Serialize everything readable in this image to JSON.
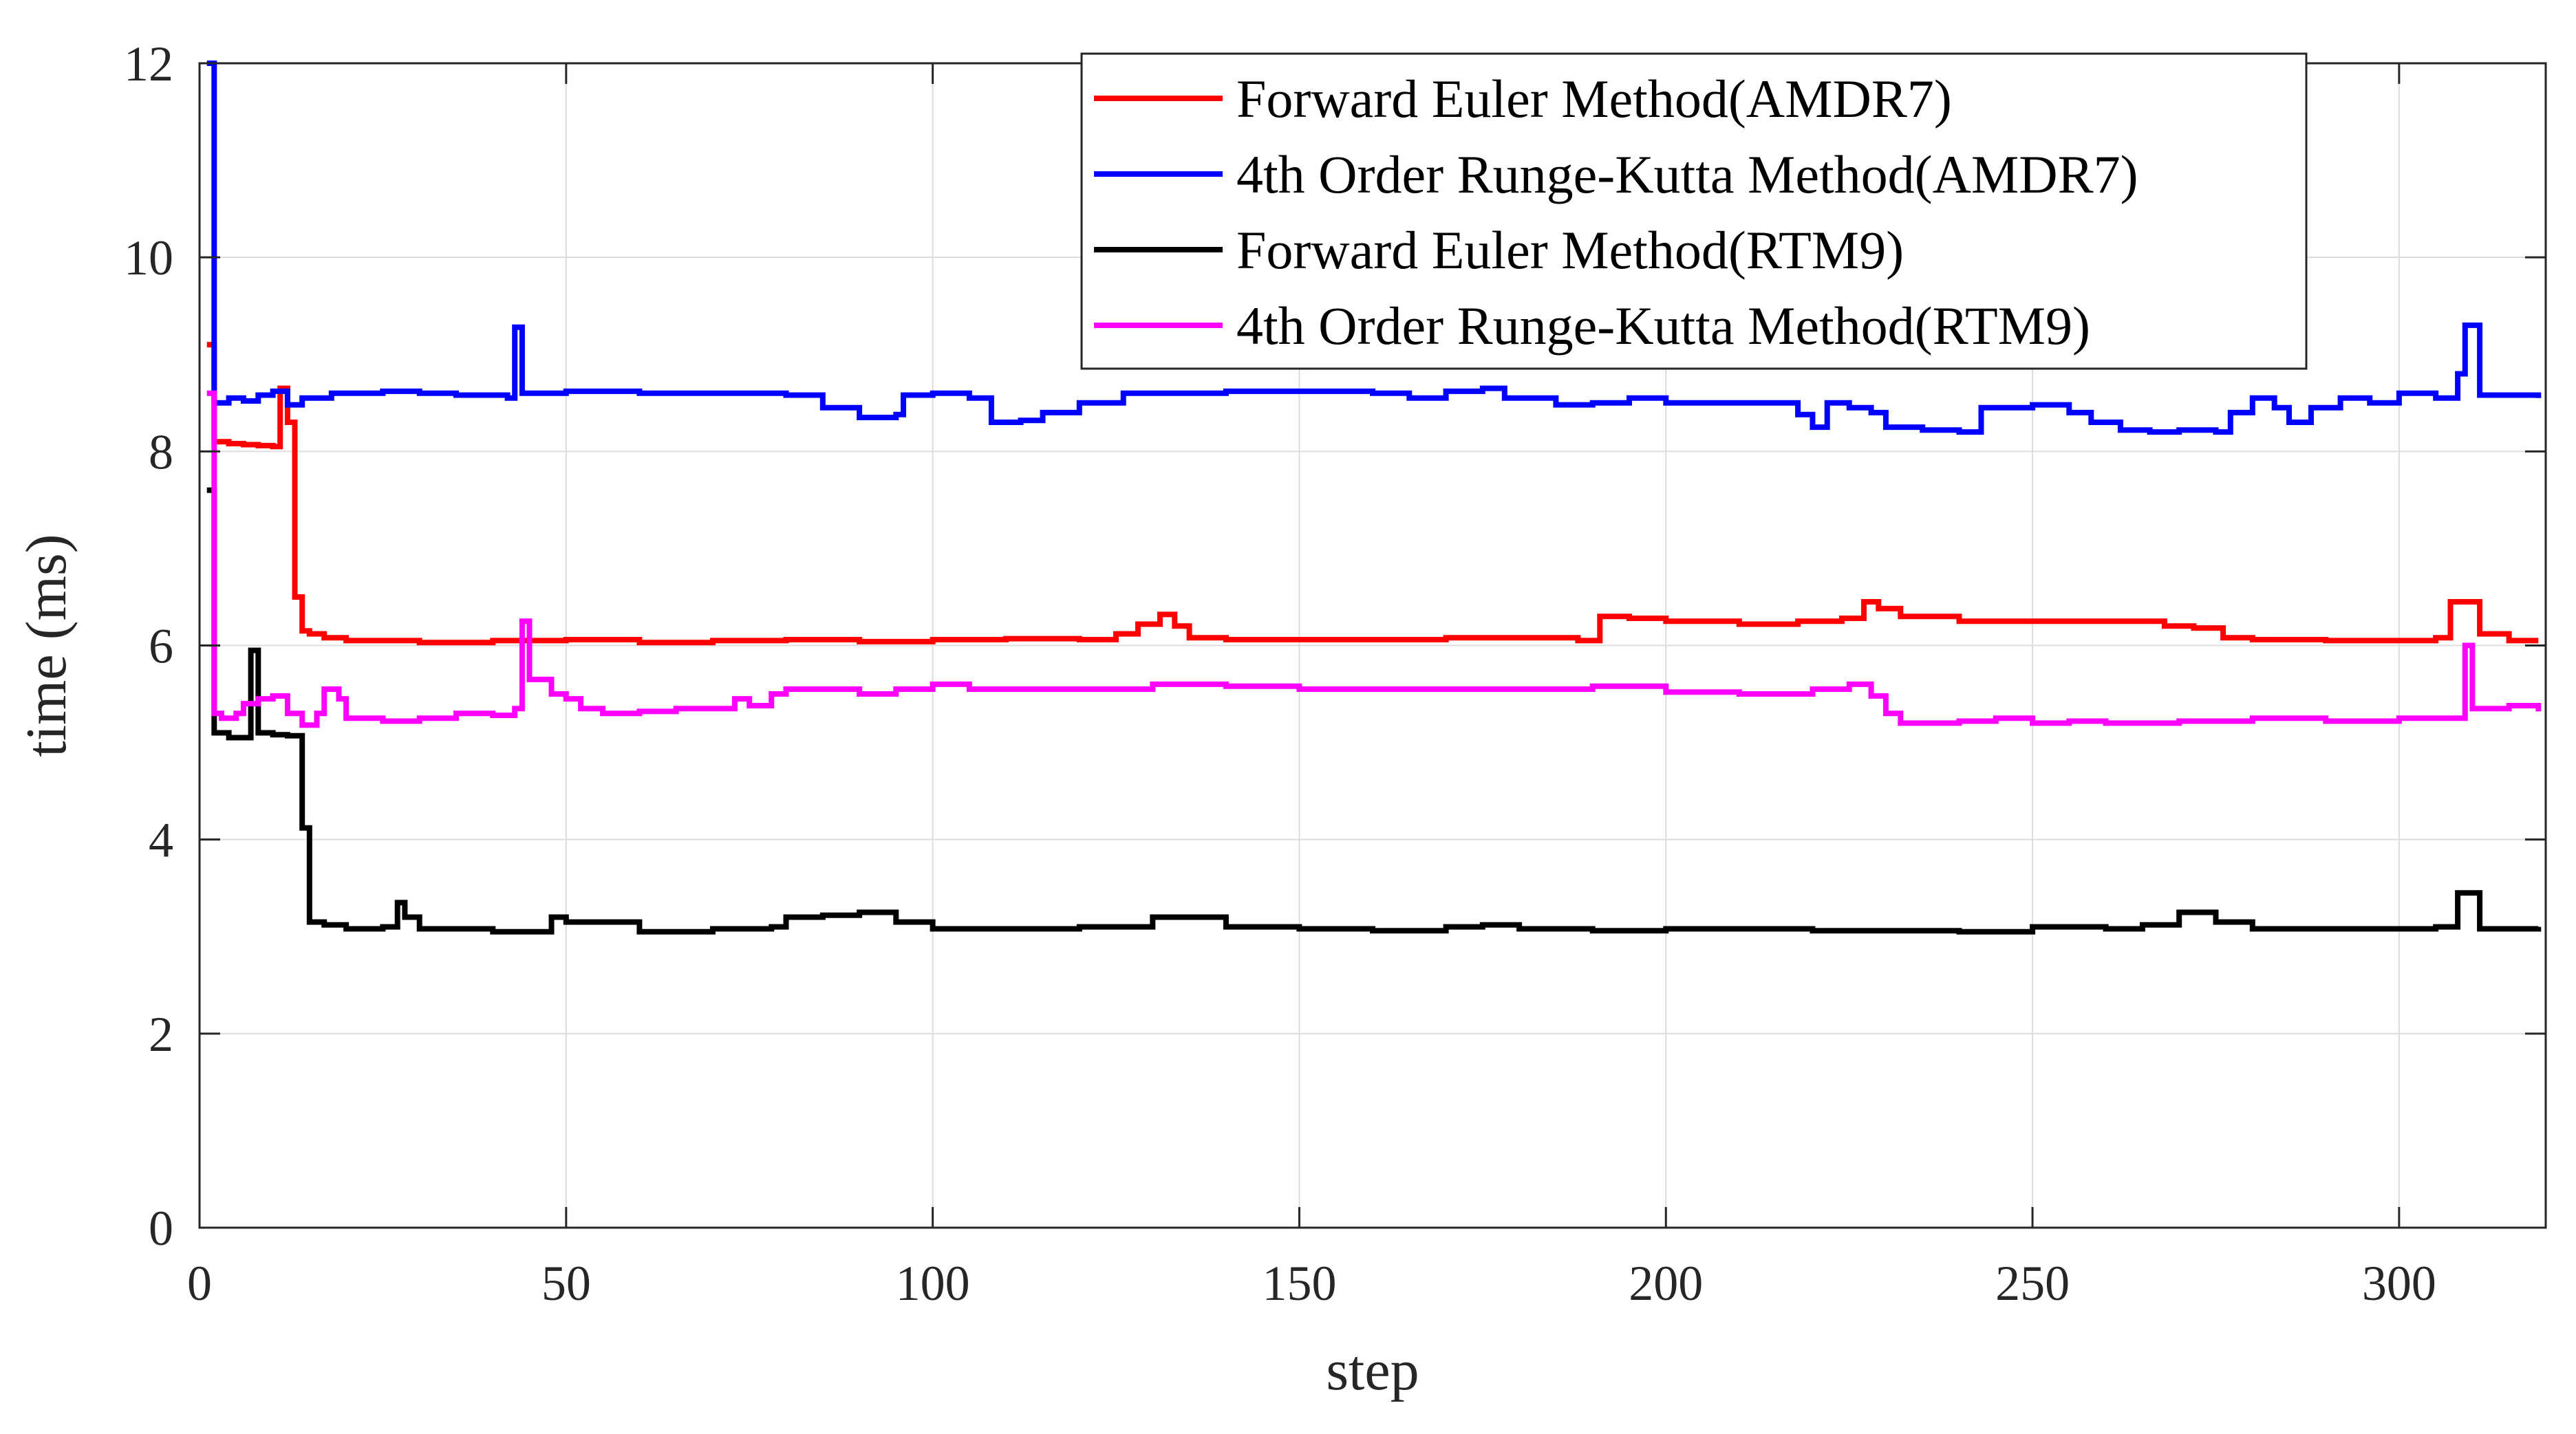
{
  "chart_data": {
    "type": "line",
    "title": "",
    "xlabel": "step",
    "ylabel": "time (ms)",
    "xlim": [
      0,
      320
    ],
    "ylim": [
      0,
      12
    ],
    "xticks": [
      0,
      50,
      100,
      150,
      200,
      250,
      300
    ],
    "yticks": [
      0,
      2,
      4,
      6,
      8,
      10,
      12
    ],
    "grid": true,
    "legend_position": "top-right",
    "step_style": "stairs",
    "series": [
      {
        "name": "Forward Euler Method(AMDR7)",
        "color": "#ff0000",
        "points": [
          [
            1,
            9.1
          ],
          [
            2,
            8.1
          ],
          [
            4,
            8.08
          ],
          [
            6,
            8.07
          ],
          [
            8,
            8.06
          ],
          [
            10,
            8.05
          ],
          [
            11,
            8.65
          ],
          [
            12,
            8.3
          ],
          [
            13,
            6.5
          ],
          [
            14,
            6.15
          ],
          [
            15,
            6.12
          ],
          [
            17,
            6.08
          ],
          [
            20,
            6.05
          ],
          [
            30,
            6.03
          ],
          [
            40,
            6.05
          ],
          [
            50,
            6.06
          ],
          [
            60,
            6.03
          ],
          [
            70,
            6.05
          ],
          [
            80,
            6.06
          ],
          [
            90,
            6.04
          ],
          [
            100,
            6.06
          ],
          [
            110,
            6.07
          ],
          [
            120,
            6.06
          ],
          [
            125,
            6.12
          ],
          [
            128,
            6.22
          ],
          [
            131,
            6.32
          ],
          [
            133,
            6.2
          ],
          [
            135,
            6.08
          ],
          [
            140,
            6.06
          ],
          [
            150,
            6.06
          ],
          [
            160,
            6.06
          ],
          [
            170,
            6.08
          ],
          [
            180,
            6.08
          ],
          [
            188,
            6.05
          ],
          [
            191,
            6.3
          ],
          [
            195,
            6.28
          ],
          [
            200,
            6.25
          ],
          [
            205,
            6.25
          ],
          [
            210,
            6.22
          ],
          [
            218,
            6.25
          ],
          [
            224,
            6.28
          ],
          [
            227,
            6.45
          ],
          [
            229,
            6.38
          ],
          [
            232,
            6.3
          ],
          [
            240,
            6.25
          ],
          [
            250,
            6.25
          ],
          [
            260,
            6.25
          ],
          [
            268,
            6.2
          ],
          [
            272,
            6.18
          ],
          [
            276,
            6.08
          ],
          [
            280,
            6.06
          ],
          [
            290,
            6.05
          ],
          [
            300,
            6.05
          ],
          [
            305,
            6.08
          ],
          [
            307,
            6.45
          ],
          [
            311,
            6.12
          ],
          [
            315,
            6.05
          ],
          [
            319,
            6.05
          ]
        ]
      },
      {
        "name": "4th Order Runge-Kutta Method(AMDR7)",
        "color": "#0000ff",
        "points": [
          [
            1,
            12.0
          ],
          [
            2,
            8.5
          ],
          [
            4,
            8.55
          ],
          [
            6,
            8.52
          ],
          [
            8,
            8.58
          ],
          [
            10,
            8.62
          ],
          [
            12,
            8.48
          ],
          [
            14,
            8.55
          ],
          [
            18,
            8.6
          ],
          [
            25,
            8.62
          ],
          [
            30,
            8.6
          ],
          [
            35,
            8.58
          ],
          [
            42,
            8.55
          ],
          [
            43,
            9.28
          ],
          [
            44,
            8.6
          ],
          [
            50,
            8.62
          ],
          [
            60,
            8.6
          ],
          [
            70,
            8.6
          ],
          [
            80,
            8.58
          ],
          [
            85,
            8.45
          ],
          [
            90,
            8.35
          ],
          [
            95,
            8.38
          ],
          [
            96,
            8.58
          ],
          [
            100,
            8.6
          ],
          [
            105,
            8.55
          ],
          [
            108,
            8.3
          ],
          [
            112,
            8.32
          ],
          [
            115,
            8.4
          ],
          [
            120,
            8.5
          ],
          [
            126,
            8.6
          ],
          [
            130,
            8.6
          ],
          [
            140,
            8.62
          ],
          [
            150,
            8.62
          ],
          [
            160,
            8.6
          ],
          [
            165,
            8.55
          ],
          [
            170,
            8.62
          ],
          [
            175,
            8.65
          ],
          [
            178,
            8.55
          ],
          [
            185,
            8.48
          ],
          [
            190,
            8.5
          ],
          [
            195,
            8.55
          ],
          [
            200,
            8.5
          ],
          [
            210,
            8.5
          ],
          [
            218,
            8.38
          ],
          [
            220,
            8.25
          ],
          [
            222,
            8.5
          ],
          [
            225,
            8.45
          ],
          [
            228,
            8.4
          ],
          [
            230,
            8.25
          ],
          [
            235,
            8.22
          ],
          [
            240,
            8.2
          ],
          [
            243,
            8.45
          ],
          [
            250,
            8.48
          ],
          [
            255,
            8.4
          ],
          [
            258,
            8.3
          ],
          [
            262,
            8.22
          ],
          [
            266,
            8.2
          ],
          [
            270,
            8.22
          ],
          [
            275,
            8.2
          ],
          [
            277,
            8.4
          ],
          [
            280,
            8.55
          ],
          [
            283,
            8.45
          ],
          [
            285,
            8.3
          ],
          [
            288,
            8.45
          ],
          [
            292,
            8.55
          ],
          [
            296,
            8.5
          ],
          [
            300,
            8.6
          ],
          [
            305,
            8.55
          ],
          [
            308,
            8.8
          ],
          [
            309,
            9.3
          ],
          [
            311,
            8.58
          ],
          [
            315,
            8.58
          ],
          [
            319,
            8.55
          ]
        ]
      },
      {
        "name": "Forward Euler Method(RTM9)",
        "color": "#000000",
        "points": [
          [
            1,
            7.6
          ],
          [
            2,
            5.1
          ],
          [
            4,
            5.05
          ],
          [
            6,
            5.05
          ],
          [
            7,
            5.95
          ],
          [
            8,
            5.1
          ],
          [
            10,
            5.08
          ],
          [
            12,
            5.07
          ],
          [
            14,
            4.12
          ],
          [
            15,
            3.15
          ],
          [
            17,
            3.12
          ],
          [
            20,
            3.08
          ],
          [
            25,
            3.1
          ],
          [
            27,
            3.35
          ],
          [
            28,
            3.2
          ],
          [
            30,
            3.08
          ],
          [
            40,
            3.05
          ],
          [
            45,
            3.05
          ],
          [
            48,
            3.2
          ],
          [
            50,
            3.15
          ],
          [
            60,
            3.05
          ],
          [
            70,
            3.08
          ],
          [
            78,
            3.1
          ],
          [
            80,
            3.2
          ],
          [
            85,
            3.22
          ],
          [
            90,
            3.25
          ],
          [
            95,
            3.15
          ],
          [
            100,
            3.08
          ],
          [
            110,
            3.08
          ],
          [
            120,
            3.1
          ],
          [
            130,
            3.2
          ],
          [
            140,
            3.1
          ],
          [
            150,
            3.08
          ],
          [
            160,
            3.06
          ],
          [
            170,
            3.1
          ],
          [
            175,
            3.12
          ],
          [
            180,
            3.08
          ],
          [
            190,
            3.06
          ],
          [
            200,
            3.08
          ],
          [
            210,
            3.08
          ],
          [
            220,
            3.06
          ],
          [
            230,
            3.06
          ],
          [
            240,
            3.05
          ],
          [
            250,
            3.1
          ],
          [
            260,
            3.08
          ],
          [
            265,
            3.12
          ],
          [
            270,
            3.25
          ],
          [
            275,
            3.15
          ],
          [
            280,
            3.08
          ],
          [
            290,
            3.08
          ],
          [
            300,
            3.08
          ],
          [
            305,
            3.1
          ],
          [
            308,
            3.45
          ],
          [
            311,
            3.08
          ],
          [
            315,
            3.08
          ],
          [
            319,
            3.1
          ]
        ]
      },
      {
        "name": "4th Order Runge-Kutta Method(RTM9)",
        "color": "#ff00ff",
        "points": [
          [
            1,
            8.6
          ],
          [
            2,
            5.3
          ],
          [
            3,
            5.25
          ],
          [
            5,
            5.3
          ],
          [
            6,
            5.4
          ],
          [
            8,
            5.45
          ],
          [
            10,
            5.48
          ],
          [
            12,
            5.3
          ],
          [
            14,
            5.18
          ],
          [
            16,
            5.3
          ],
          [
            17,
            5.55
          ],
          [
            19,
            5.45
          ],
          [
            20,
            5.25
          ],
          [
            25,
            5.22
          ],
          [
            30,
            5.25
          ],
          [
            35,
            5.3
          ],
          [
            40,
            5.28
          ],
          [
            43,
            5.35
          ],
          [
            44,
            6.25
          ],
          [
            45,
            5.65
          ],
          [
            48,
            5.5
          ],
          [
            50,
            5.45
          ],
          [
            52,
            5.35
          ],
          [
            55,
            5.3
          ],
          [
            60,
            5.32
          ],
          [
            65,
            5.35
          ],
          [
            70,
            5.35
          ],
          [
            73,
            5.45
          ],
          [
            75,
            5.38
          ],
          [
            78,
            5.5
          ],
          [
            80,
            5.55
          ],
          [
            85,
            5.55
          ],
          [
            90,
            5.5
          ],
          [
            95,
            5.55
          ],
          [
            100,
            5.6
          ],
          [
            105,
            5.55
          ],
          [
            110,
            5.55
          ],
          [
            120,
            5.55
          ],
          [
            130,
            5.6
          ],
          [
            140,
            5.58
          ],
          [
            150,
            5.55
          ],
          [
            160,
            5.55
          ],
          [
            170,
            5.55
          ],
          [
            180,
            5.55
          ],
          [
            190,
            5.58
          ],
          [
            200,
            5.52
          ],
          [
            210,
            5.5
          ],
          [
            215,
            5.5
          ],
          [
            220,
            5.55
          ],
          [
            225,
            5.6
          ],
          [
            228,
            5.48
          ],
          [
            230,
            5.3
          ],
          [
            232,
            5.2
          ],
          [
            240,
            5.22
          ],
          [
            245,
            5.25
          ],
          [
            250,
            5.2
          ],
          [
            255,
            5.22
          ],
          [
            260,
            5.2
          ],
          [
            270,
            5.22
          ],
          [
            280,
            5.25
          ],
          [
            290,
            5.22
          ],
          [
            300,
            5.25
          ],
          [
            305,
            5.25
          ],
          [
            308,
            5.25
          ],
          [
            309,
            6.0
          ],
          [
            310,
            5.35
          ],
          [
            315,
            5.38
          ],
          [
            319,
            5.32
          ]
        ]
      }
    ]
  }
}
